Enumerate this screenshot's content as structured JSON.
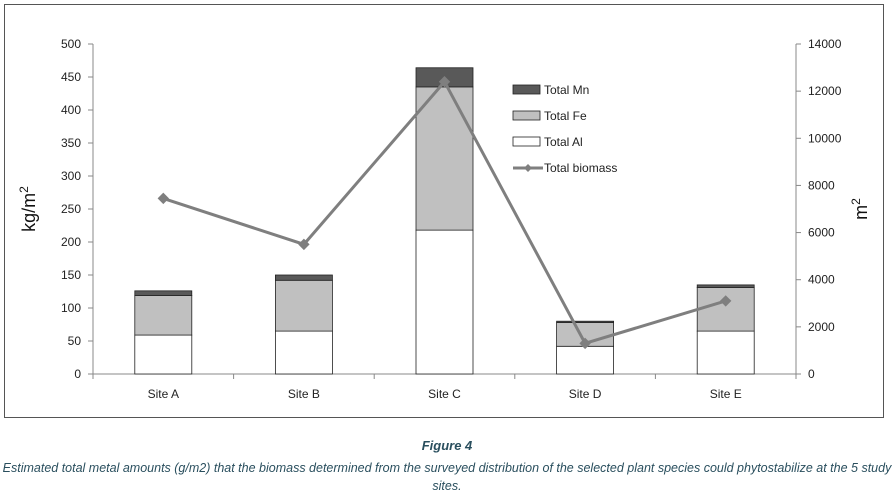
{
  "figure": {
    "title": "Figure 4",
    "caption": "Estimated total metal amounts (g/m2) that the biomass determined from the surveyed distribution of the selected plant species could phytostabilize at the 5 study sites."
  },
  "chart_data": {
    "type": "bar",
    "stacked": true,
    "categories": [
      "Site A",
      "Site B",
      "Site C",
      "Site D",
      "Site E"
    ],
    "series": [
      {
        "name": "Total Al",
        "axis": "left",
        "type": "bar",
        "color": "#ffffff",
        "values": [
          59,
          65,
          218,
          42,
          65
        ]
      },
      {
        "name": "Total Fe",
        "axis": "left",
        "type": "bar",
        "color": "#c0c0c0",
        "values": [
          60,
          77,
          217,
          36,
          66
        ]
      },
      {
        "name": "Total Mn",
        "axis": "left",
        "type": "bar",
        "color": "#595959",
        "values": [
          7,
          8,
          29,
          2,
          4
        ]
      },
      {
        "name": "Total biomass",
        "axis": "right",
        "type": "line",
        "color": "#7f7f7f",
        "marker": "diamond",
        "values": [
          7450,
          5500,
          12400,
          1300,
          3100
        ]
      }
    ],
    "ylabel": "kg/m2",
    "y2label": "m2",
    "ylim": [
      0,
      500
    ],
    "yticks": [
      "0",
      "50",
      "100",
      "150",
      "200",
      "250",
      "300",
      "350",
      "400",
      "450",
      "500"
    ],
    "y2lim": [
      0,
      14000
    ],
    "y2ticks": [
      "0",
      "2000",
      "4000",
      "6000",
      "8000",
      "10000",
      "12000",
      "14000"
    ],
    "legend_order": [
      "Total Mn",
      "Total Fe",
      "Total Al",
      "Total biomass"
    ],
    "legend_position": "top-right inside",
    "grid": false
  }
}
